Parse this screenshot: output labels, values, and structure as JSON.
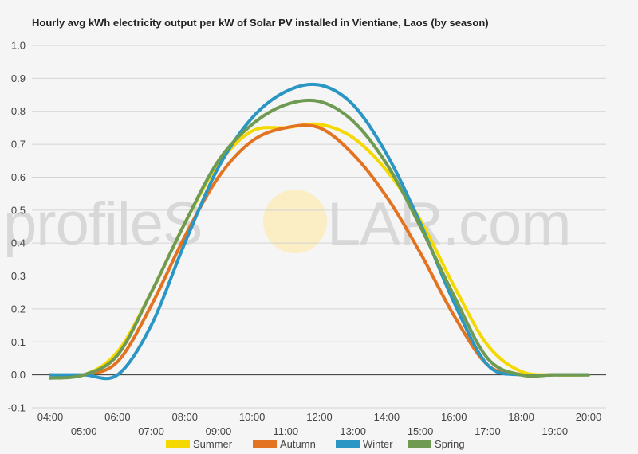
{
  "chart_data": {
    "type": "line",
    "title": "Hourly avg kWh electricity output per kW of Solar PV installed in Vientiane, Laos (by season)",
    "watermark": {
      "left": "profileS",
      "right": "LAR.com"
    },
    "xlabel": "",
    "ylabel": "",
    "ylim": [
      -0.1,
      1.0
    ],
    "yticks": [
      "-0.1",
      "0.0",
      "0.1",
      "0.2",
      "0.3",
      "0.4",
      "0.5",
      "0.6",
      "0.7",
      "0.8",
      "0.9",
      "1.0"
    ],
    "x": [
      4,
      5,
      6,
      7,
      8,
      9,
      10,
      11,
      12,
      13,
      14,
      15,
      16,
      17,
      18,
      19,
      20
    ],
    "xtick_labels": [
      "04:00",
      "05:00",
      "06:00",
      "07:00",
      "08:00",
      "09:00",
      "10:00",
      "11:00",
      "12:00",
      "13:00",
      "14:00",
      "15:00",
      "16:00",
      "17:00",
      "18:00",
      "19:00",
      "20:00"
    ],
    "legend_position": "bottom",
    "series": [
      {
        "name": "Summer",
        "color": "#f5d800",
        "values": [
          0.0,
          0.0,
          0.07,
          0.25,
          0.46,
          0.64,
          0.74,
          0.75,
          0.76,
          0.72,
          0.62,
          0.47,
          0.27,
          0.09,
          0.01,
          0.0,
          0.0
        ]
      },
      {
        "name": "Autumn",
        "color": "#e37320",
        "values": [
          0.0,
          0.0,
          0.04,
          0.21,
          0.42,
          0.6,
          0.71,
          0.75,
          0.75,
          0.67,
          0.54,
          0.37,
          0.18,
          0.03,
          0.0,
          0.0,
          0.0
        ]
      },
      {
        "name": "Winter",
        "color": "#2b96c4",
        "values": [
          0.0,
          0.0,
          0.0,
          0.15,
          0.4,
          0.63,
          0.78,
          0.86,
          0.88,
          0.82,
          0.67,
          0.46,
          0.22,
          0.03,
          0.0,
          0.0,
          0.0
        ]
      },
      {
        "name": "Spring",
        "color": "#6f9a51",
        "values": [
          -0.01,
          0.0,
          0.06,
          0.25,
          0.46,
          0.65,
          0.76,
          0.82,
          0.83,
          0.77,
          0.64,
          0.45,
          0.24,
          0.05,
          0.0,
          0.0,
          0.0
        ]
      }
    ]
  }
}
